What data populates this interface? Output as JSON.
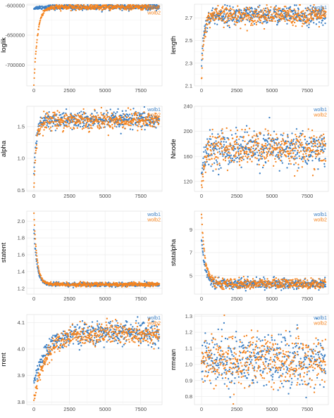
{
  "colors": {
    "wolb1": "#3b7fc4",
    "wolb2": "#f5841f",
    "grid": "#ebebeb",
    "axis": "#333333",
    "tick": "#4d4d4d"
  },
  "legend": [
    "wolb1",
    "wolb2"
  ],
  "chart_data": [
    {
      "type": "scatter",
      "ylabel": "loglik",
      "xlabel": "",
      "xlim": [
        -500,
        9000
      ],
      "ylim": [
        -735000,
        -598000
      ],
      "xticks": [
        0,
        2500,
        5000,
        7500
      ],
      "xtick_labels": [
        "0",
        "2500",
        "5000",
        "7500"
      ],
      "yticks": [
        -700000,
        -650000,
        -600000
      ],
      "ytick_labels": [
        "-700000",
        "-650000",
        "-600000"
      ],
      "start": [
        -735000,
        -605000
      ],
      "mean": -603000,
      "jitter": 2200,
      "tau": 250,
      "max_x": 8800
    },
    {
      "type": "scatter",
      "ylabel": "length",
      "xlabel": "",
      "xlim": [
        -500,
        9000
      ],
      "ylim": [
        2.1,
        2.82
      ],
      "xticks": [
        0,
        2500,
        5000,
        7500
      ],
      "xtick_labels": [
        "0",
        "2500",
        "5000",
        "7500"
      ],
      "yticks": [
        2.1,
        2.3,
        2.5,
        2.7
      ],
      "ytick_labels": [
        "2.1",
        "2.3",
        "2.5",
        "2.7"
      ],
      "start": [
        2.15,
        2.3
      ],
      "mean": 2.72,
      "jitter": 0.04,
      "tau": 180,
      "max_x": 8800
    },
    {
      "type": "scatter",
      "ylabel": "alpha",
      "xlabel": "",
      "xlim": [
        -500,
        9000
      ],
      "ylim": [
        0.48,
        1.82
      ],
      "xticks": [
        0,
        2500,
        5000,
        7500
      ],
      "xtick_labels": [
        "0",
        "2500",
        "5000",
        "7500"
      ],
      "yticks": [
        0.5,
        1.0,
        1.5
      ],
      "ytick_labels": [
        "0.5",
        "1.0",
        "1.5"
      ],
      "start": [
        0.5,
        0.75
      ],
      "mean": 1.6,
      "jitter": 0.07,
      "tau": 180,
      "max_x": 8800
    },
    {
      "type": "scatter",
      "ylabel": "Nnode",
      "xlabel": "",
      "xlim": [
        -500,
        9000
      ],
      "ylim": [
        104,
        240
      ],
      "xticks": [
        0,
        2500,
        5000,
        7500
      ],
      "xtick_labels": [
        "0",
        "2500",
        "5000",
        "7500"
      ],
      "yticks": [
        120,
        160,
        200,
        240
      ],
      "ytick_labels": [
        "120",
        "160",
        "200",
        "240"
      ],
      "start": [
        108,
        130
      ],
      "mean": 172,
      "jitter": 14,
      "tau": 200,
      "max_x": 8800
    },
    {
      "type": "scatter",
      "ylabel": "statent",
      "xlabel": "",
      "xlim": [
        -500,
        9000
      ],
      "ylim": [
        1.13,
        2.12
      ],
      "xticks": [
        0,
        2500,
        5000,
        7500
      ],
      "xtick_labels": [
        "0",
        "2500",
        "5000",
        "7500"
      ],
      "yticks": [
        1.2,
        1.4,
        1.6,
        1.8,
        2.0
      ],
      "ytick_labels": [
        "1.2",
        "1.4",
        "1.6",
        "1.8",
        "2.0"
      ],
      "start": [
        2.1,
        1.9
      ],
      "mean": 1.245,
      "jitter": 0.012,
      "tau": 220,
      "max_x": 8800
    },
    {
      "type": "scatter",
      "ylabel": "statalpha",
      "xlabel": "",
      "xlim": [
        -500,
        9000
      ],
      "ylim": [
        3.4,
        10.6
      ],
      "xticks": [
        0,
        2500,
        5000,
        7500
      ],
      "xtick_labels": [
        "0",
        "2500",
        "5000",
        "7500"
      ],
      "yticks": [
        5,
        7,
        9
      ],
      "ytick_labels": [
        "5",
        "7",
        "9"
      ],
      "start": [
        10.3,
        8.2
      ],
      "mean": 4.3,
      "jitter": 0.22,
      "tau": 260,
      "max_x": 8800
    },
    {
      "type": "scatter",
      "ylabel": "rrent",
      "xlabel": "",
      "xlim": [
        -500,
        9000
      ],
      "ylim": [
        3.79,
        4.13
      ],
      "xticks": [
        0,
        2500,
        5000,
        7500
      ],
      "xtick_labels": [
        "0",
        "2500",
        "5000",
        "7500"
      ],
      "yticks": [
        3.8,
        3.9,
        4.0,
        4.1
      ],
      "ytick_labels": [
        "3.8",
        "3.9",
        "4.0",
        "4.1"
      ],
      "start": [
        3.81,
        3.88
      ],
      "mean": 4.06,
      "jitter": 0.022,
      "tau": 900,
      "max_x": 8800
    },
    {
      "type": "scatter",
      "ylabel": "rrmean",
      "xlabel": "",
      "xlim": [
        -500,
        9000
      ],
      "ylim": [
        0.75,
        1.31
      ],
      "xticks": [
        0,
        2500,
        5000,
        7500
      ],
      "xtick_labels": [
        "0",
        "2500",
        "5000",
        "7500"
      ],
      "yticks": [
        0.8,
        0.9,
        1.0,
        1.1,
        1.2,
        1.3
      ],
      "ytick_labels": [
        "0.8",
        "0.9",
        "1.0",
        "1.1",
        "1.2",
        "1.3"
      ],
      "start": [
        1.0,
        1.0
      ],
      "mean": 1.02,
      "jitter": 0.08,
      "tau": 1,
      "max_x": 8800
    }
  ]
}
